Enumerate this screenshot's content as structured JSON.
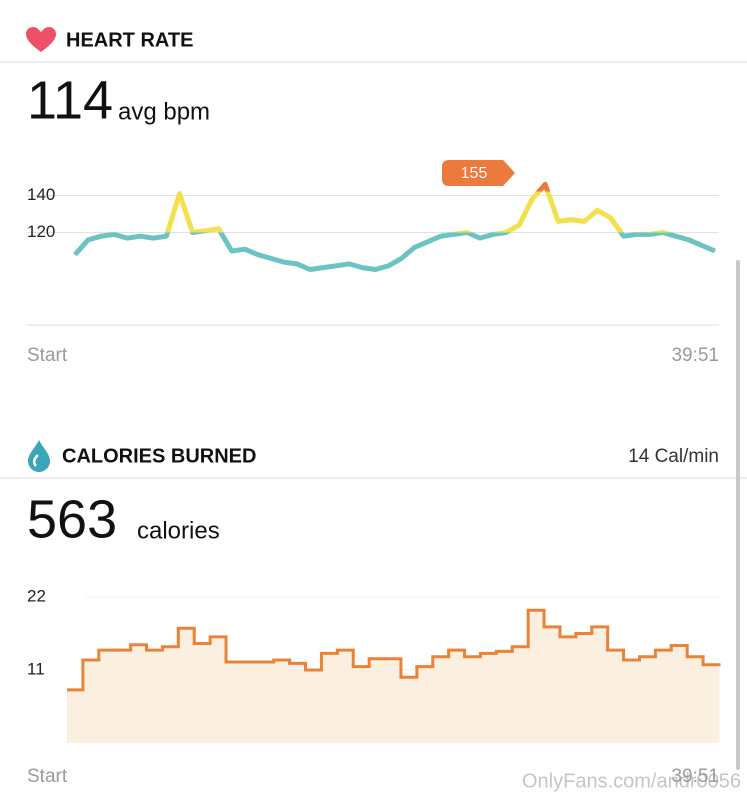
{
  "heart_rate": {
    "title": "HEART RATE",
    "avg_value": "114",
    "avg_unit": "avg bpm",
    "peak_label": 155,
    "start_label": "Start",
    "end_label": "39:51",
    "chart": {
      "type": "line",
      "values": [
        108,
        116,
        118,
        119,
        117,
        118,
        117,
        118,
        141,
        120,
        121,
        122,
        110,
        111,
        108,
        106,
        104,
        103,
        100,
        101,
        102,
        103,
        101,
        100,
        102,
        106,
        112,
        115,
        118,
        119,
        120,
        117,
        119,
        120,
        124,
        138,
        146,
        126,
        127,
        126,
        132,
        128,
        118,
        119,
        119,
        120,
        118,
        116,
        113,
        110
      ],
      "ylim": [
        70,
        160
      ],
      "yticks": [
        120,
        140
      ],
      "colors": [
        "#6cc3c4",
        "#f2e04c",
        "#ec7a3c"
      ]
    }
  },
  "calories": {
    "title": "CALORIES BURNED",
    "rate": "14 Cal/min",
    "total_value": "563",
    "total_unit": "calories",
    "start_label": "Start",
    "end_label": "39:51",
    "chart": {
      "type": "step",
      "values": [
        8,
        12.5,
        14,
        14,
        14.8,
        14,
        14.5,
        17.3,
        15,
        16,
        12.2,
        12.2,
        12.2,
        12.5,
        12,
        11,
        13.5,
        14,
        11.5,
        12.7,
        12.7,
        9.9,
        11.5,
        13,
        14,
        13,
        13.5,
        13.8,
        14.5,
        20,
        17.5,
        16,
        16.5,
        17.5,
        14,
        12.5,
        13,
        14,
        14.7,
        13,
        11.8
      ],
      "ylim": [
        0,
        22
      ],
      "yticks": [
        11,
        22
      ],
      "color": "#e8843a",
      "fill": "#fbefdf"
    }
  },
  "watermark": "OnlyFans.com/andr0056"
}
